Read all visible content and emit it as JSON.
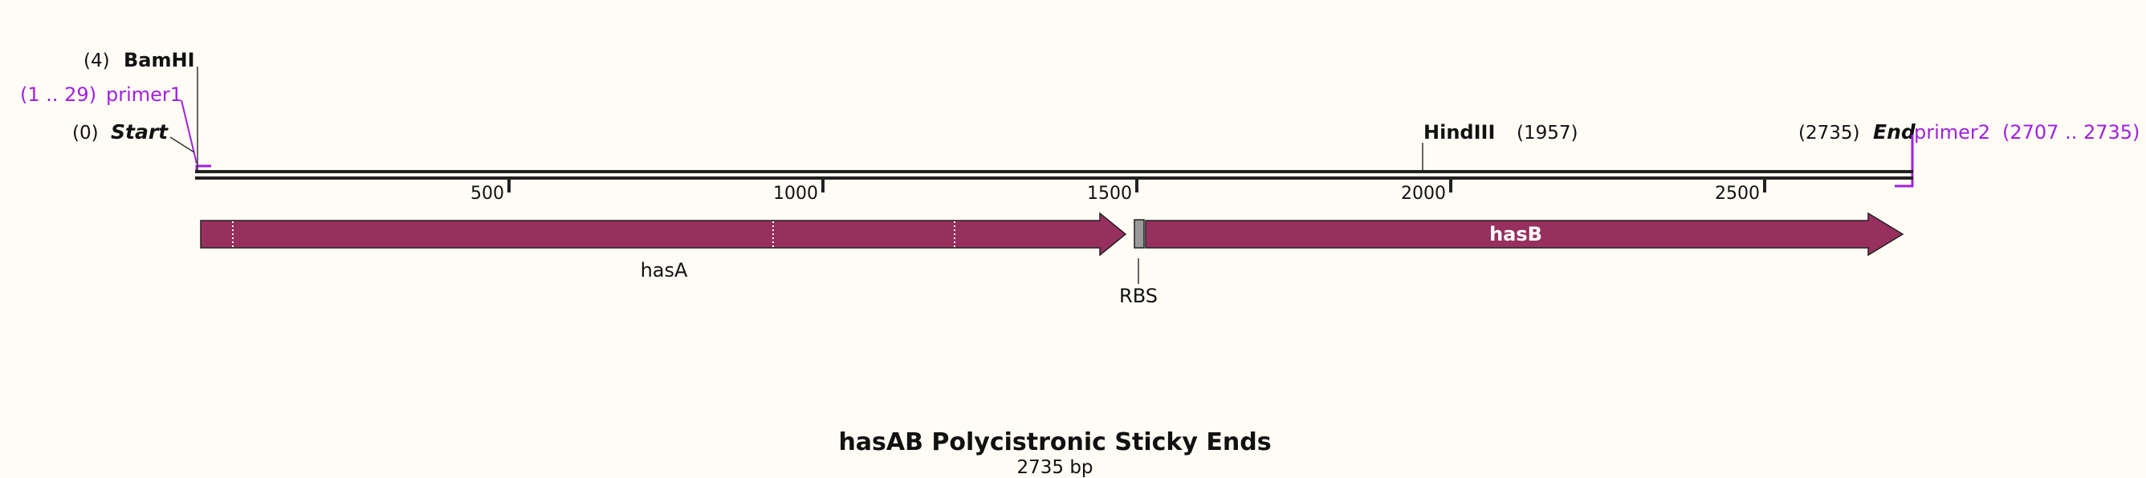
{
  "title": "hasAB Polycistronic Sticky Ends",
  "subtitle": "2735 bp",
  "sequence_length": 2735,
  "ticks": [
    {
      "value": 500,
      "label": "500"
    },
    {
      "value": 1000,
      "label": "1000"
    },
    {
      "value": 1500,
      "label": "1500"
    },
    {
      "value": 2000,
      "label": "2000"
    },
    {
      "value": 2500,
      "label": "2500"
    }
  ],
  "markers": {
    "start": {
      "position": "(0)",
      "name": "Start"
    },
    "end": {
      "position": "(2735)",
      "name": "End"
    },
    "bamhi": {
      "position": "(4)",
      "name": "BamHI"
    },
    "hindiii": {
      "position": "(1957)",
      "name": "HindIII"
    }
  },
  "primers": {
    "primer1": {
      "name": "primer1",
      "range": "(1 .. 29)"
    },
    "primer2": {
      "name": "primer2",
      "range": "(2707 .. 2735)"
    }
  },
  "features": {
    "hasA": {
      "name": "hasA",
      "color": "#97305f"
    },
    "rbs": {
      "name": "RBS",
      "color": "#9a9a9a"
    },
    "hasB": {
      "name": "hasB",
      "color": "#97305f"
    }
  },
  "colors": {
    "background": "#fffcf5",
    "feature": "#97305f",
    "primer": "#a020e0",
    "backbone": "#222222"
  }
}
